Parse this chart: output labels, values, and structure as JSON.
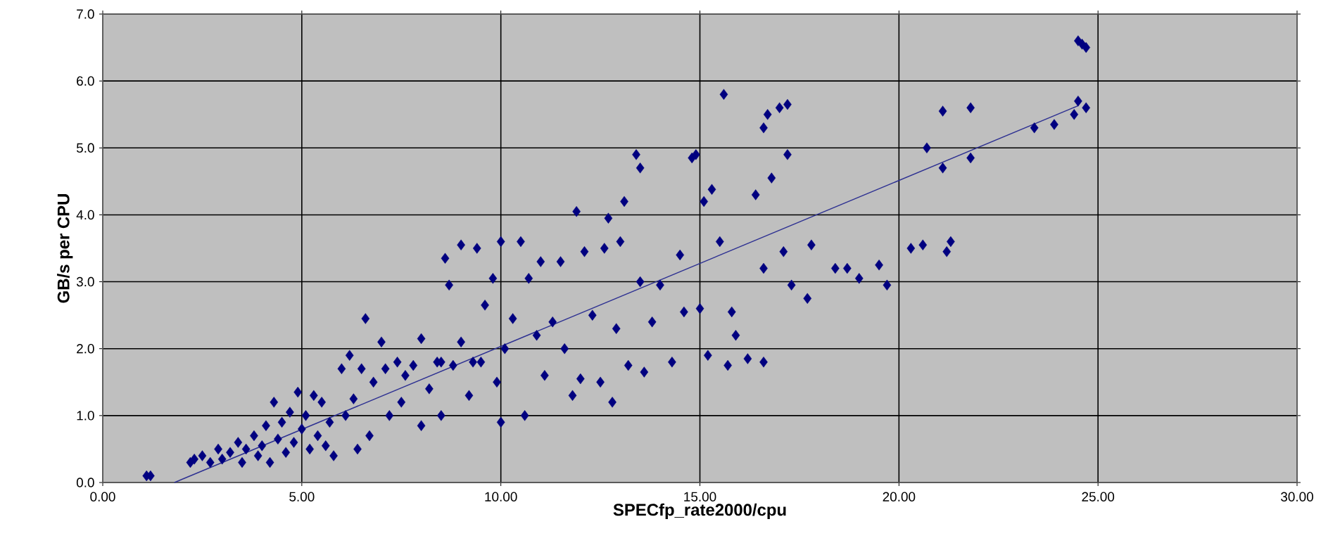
{
  "chart_data": {
    "type": "scatter",
    "xlabel": "SPECfp_rate2000/cpu",
    "ylabel": "GB/s per CPU",
    "xlim": [
      0,
      30
    ],
    "ylim": [
      0,
      7
    ],
    "xticks": [
      {
        "value": 0,
        "label": "0.00"
      },
      {
        "value": 5,
        "label": "5.00"
      },
      {
        "value": 10,
        "label": "10.00"
      },
      {
        "value": 15,
        "label": "15.00"
      },
      {
        "value": 20,
        "label": "20.00"
      },
      {
        "value": 25,
        "label": "25.00"
      },
      {
        "value": 30,
        "label": "30.00"
      }
    ],
    "yticks": [
      {
        "value": 0,
        "label": "0.0"
      },
      {
        "value": 1,
        "label": "1.0"
      },
      {
        "value": 2,
        "label": "2.0"
      },
      {
        "value": 3,
        "label": "3.0"
      },
      {
        "value": 4,
        "label": "4.0"
      },
      {
        "value": 5,
        "label": "5.0"
      },
      {
        "value": 6,
        "label": "6.0"
      },
      {
        "value": 7,
        "label": "7.0"
      }
    ],
    "grid": true,
    "series": [
      {
        "marker": "diamond",
        "color": "#000080",
        "x": [
          1.1,
          1.2,
          2.2,
          2.3,
          2.5,
          2.7,
          2.9,
          3.0,
          3.2,
          3.4,
          3.5,
          3.6,
          3.8,
          3.9,
          4.0,
          4.1,
          4.2,
          4.3,
          4.4,
          4.5,
          4.6,
          4.7,
          4.8,
          4.9,
          5.0,
          5.1,
          5.2,
          5.3,
          5.4,
          5.5,
          5.6,
          5.7,
          5.8,
          6.0,
          6.1,
          6.2,
          6.3,
          6.4,
          6.5,
          6.6,
          6.7,
          6.8,
          7.0,
          7.1,
          7.2,
          7.4,
          7.5,
          7.6,
          7.8,
          8.0,
          8.0,
          8.2,
          8.4,
          8.5,
          8.5,
          8.6,
          8.7,
          8.8,
          9.0,
          9.0,
          9.2,
          9.3,
          9.4,
          9.5,
          9.6,
          9.8,
          9.9,
          10.0,
          10.0,
          10.1,
          10.3,
          10.5,
          10.6,
          10.7,
          10.9,
          11.0,
          11.1,
          11.3,
          11.5,
          11.6,
          11.8,
          11.9,
          12.0,
          12.1,
          12.3,
          12.5,
          12.6,
          12.7,
          12.8,
          12.9,
          13.0,
          13.1,
          13.2,
          13.4,
          13.5,
          13.5,
          13.6,
          13.8,
          14.0,
          14.3,
          14.5,
          14.6,
          14.8,
          14.9,
          15.0,
          15.1,
          15.2,
          15.3,
          15.5,
          15.6,
          15.7,
          15.8,
          15.9,
          16.2,
          16.4,
          16.6,
          16.6,
          16.6,
          16.7,
          16.8,
          17.0,
          17.1,
          17.2,
          17.2,
          17.3,
          17.7,
          17.8,
          18.4,
          18.7,
          19.0,
          19.5,
          19.7,
          20.3,
          20.6,
          20.7,
          21.1,
          21.1,
          21.2,
          21.3,
          21.8,
          21.8,
          23.4,
          23.9,
          24.4,
          24.5,
          24.5,
          24.6,
          24.7,
          24.7
        ],
        "values": [
          0.1,
          0.1,
          0.3,
          0.35,
          0.4,
          0.3,
          0.5,
          0.35,
          0.45,
          0.6,
          0.3,
          0.5,
          0.7,
          0.4,
          0.55,
          0.85,
          0.3,
          1.2,
          0.65,
          0.9,
          0.45,
          1.05,
          0.6,
          1.35,
          0.8,
          1.0,
          0.5,
          1.3,
          0.7,
          1.2,
          0.55,
          0.9,
          0.4,
          1.7,
          1.0,
          1.9,
          1.25,
          0.5,
          1.7,
          2.45,
          0.7,
          1.5,
          2.1,
          1.7,
          1.0,
          1.8,
          1.2,
          1.6,
          1.75,
          0.85,
          2.15,
          1.4,
          1.8,
          1.0,
          1.8,
          3.35,
          2.95,
          1.75,
          2.1,
          3.55,
          1.3,
          1.8,
          3.5,
          1.8,
          2.65,
          3.05,
          1.5,
          3.6,
          0.9,
          2.0,
          2.45,
          3.6,
          1.0,
          3.05,
          2.2,
          3.3,
          1.6,
          2.4,
          3.3,
          2.0,
          1.3,
          4.05,
          1.55,
          3.45,
          2.5,
          1.5,
          3.5,
          3.95,
          1.2,
          2.3,
          3.6,
          4.2,
          1.75,
          4.9,
          4.7,
          3.0,
          1.65,
          2.4,
          2.95,
          1.8,
          3.4,
          2.55,
          4.85,
          4.9,
          2.6,
          4.2,
          1.9,
          4.38,
          3.6,
          5.8,
          1.75,
          2.55,
          2.2,
          1.85,
          4.3,
          5.3,
          1.8,
          3.2,
          5.5,
          4.55,
          5.6,
          3.45,
          5.65,
          4.9,
          2.95,
          2.75,
          3.55,
          3.2,
          3.2,
          3.05,
          3.25,
          2.95,
          3.5,
          3.55,
          5.0,
          5.55,
          4.7,
          3.45,
          3.6,
          5.6,
          4.85,
          5.3,
          5.35,
          5.5,
          5.7,
          6.6,
          6.55,
          6.5,
          5.6
        ]
      },
      {
        "type": "line",
        "color": "#2e3192",
        "x": [
          1.8,
          24.5
        ],
        "values": [
          0,
          5.63
        ]
      }
    ]
  }
}
